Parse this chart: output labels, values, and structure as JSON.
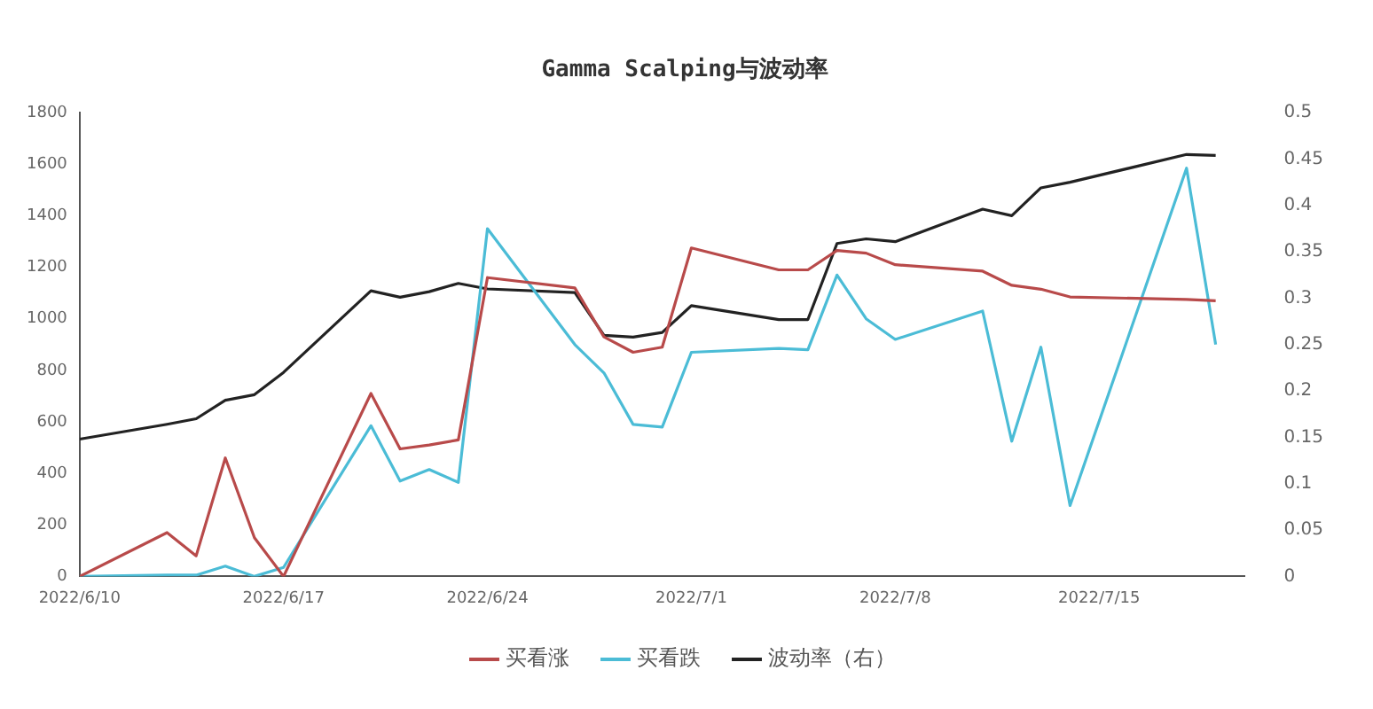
{
  "chart_data": {
    "type": "line",
    "title": "Gamma Scalping与波动率",
    "x": [
      "2022-06-10",
      "2022-06-13",
      "2022-06-14",
      "2022-06-15",
      "2022-06-16",
      "2022-06-17",
      "2022-06-20",
      "2022-06-21",
      "2022-06-22",
      "2022-06-23",
      "2022-06-24",
      "2022-06-27",
      "2022-06-28",
      "2022-06-29",
      "2022-06-30",
      "2022-07-01",
      "2022-07-04",
      "2022-07-05",
      "2022-07-06",
      "2022-07-07",
      "2022-07-08",
      "2022-07-11",
      "2022-07-12",
      "2022-07-13",
      "2022-07-14",
      "2022-07-18",
      "2022-07-19"
    ],
    "series": [
      {
        "name": "买看涨",
        "color": "#b84a4a",
        "values": [
          0,
          170,
          80,
          460,
          150,
          0,
          710,
          495,
          510,
          530,
          1160,
          1120,
          930,
          870,
          890,
          1275,
          1190,
          1190,
          1265,
          1255,
          1210,
          1185,
          1130,
          1115,
          1085,
          1075,
          1070
        ]
      },
      {
        "name": "买看跌",
        "color": "#4bbcd6",
        "values": [
          0,
          5,
          5,
          40,
          0,
          35,
          585,
          370,
          415,
          365,
          1350,
          900,
          790,
          590,
          580,
          870,
          885,
          880,
          1170,
          1000,
          920,
          1030,
          525,
          890,
          275,
          1585,
          900
        ]
      },
      {
        "name": "波动率（右）",
        "color": "#222222",
        "axis": "y2",
        "values": [
          0.148,
          0.164,
          0.17,
          0.19,
          0.196,
          0.22,
          0.308,
          0.301,
          0.307,
          0.316,
          0.31,
          0.306,
          0.26,
          0.258,
          0.263,
          0.292,
          0.277,
          0.277,
          0.359,
          0.364,
          0.361,
          0.396,
          0.389,
          0.419,
          0.425,
          0.455,
          0.454
        ]
      }
    ],
    "xlim": [
      "2022-06-10",
      "2022-07-20"
    ],
    "xticks": [
      {
        "value": "2022-06-10",
        "label": "2022/6/10"
      },
      {
        "value": "2022-06-17",
        "label": "2022/6/17"
      },
      {
        "value": "2022-06-24",
        "label": "2022/6/24"
      },
      {
        "value": "2022-07-01",
        "label": "2022/7/1"
      },
      {
        "value": "2022-07-08",
        "label": "2022/7/8"
      },
      {
        "value": "2022-07-15",
        "label": "2022/7/15"
      }
    ],
    "ylim": [
      0,
      1800
    ],
    "yticks": [
      0,
      200,
      400,
      600,
      800,
      1000,
      1200,
      1400,
      1600,
      1800
    ],
    "y2lim": [
      0,
      0.5
    ],
    "y2ticks": [
      0,
      0.05,
      0.1,
      0.15,
      0.2,
      0.25,
      0.3,
      0.35,
      0.4,
      0.45,
      0.5
    ],
    "grid": false,
    "legend": "bottom",
    "marker": "none",
    "line_style": "solid"
  }
}
